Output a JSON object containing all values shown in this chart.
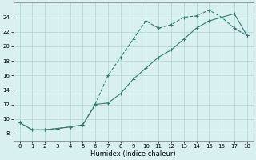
{
  "xlabel": "Humidex (Indice chaleur)",
  "line_upper_x": [
    0,
    1,
    2,
    3,
    4,
    5,
    6,
    7,
    8,
    9,
    10,
    11,
    12,
    13,
    14,
    15,
    16,
    17,
    18
  ],
  "line_upper_y": [
    9.5,
    8.5,
    8.5,
    8.7,
    8.9,
    9.2,
    12.1,
    16.0,
    18.5,
    21.0,
    23.5,
    22.5,
    23.0,
    24.0,
    24.2,
    25.0,
    24.0,
    22.5,
    21.5
  ],
  "line_lower_x": [
    0,
    1,
    2,
    3,
    4,
    5,
    6,
    7,
    8,
    9,
    10,
    11,
    12,
    13,
    14,
    15,
    16,
    17,
    18
  ],
  "line_lower_y": [
    9.5,
    8.5,
    8.5,
    8.7,
    8.9,
    9.2,
    12.0,
    12.2,
    13.5,
    15.5,
    17.0,
    18.5,
    19.5,
    21.0,
    22.5,
    23.5,
    24.0,
    24.5,
    21.5
  ],
  "color": "#2e7d6e",
  "bg_color": "#d8f0f0",
  "grid_color": "#aed4d4",
  "ylim": [
    7,
    26
  ],
  "xlim": [
    -0.5,
    18.5
  ],
  "yticks": [
    8,
    10,
    12,
    14,
    16,
    18,
    20,
    22,
    24
  ],
  "xticks": [
    0,
    1,
    2,
    3,
    4,
    5,
    6,
    7,
    8,
    9,
    10,
    11,
    12,
    13,
    14,
    15,
    16,
    17,
    18
  ],
  "tick_fontsize": 5.0,
  "xlabel_fontsize": 6.0
}
